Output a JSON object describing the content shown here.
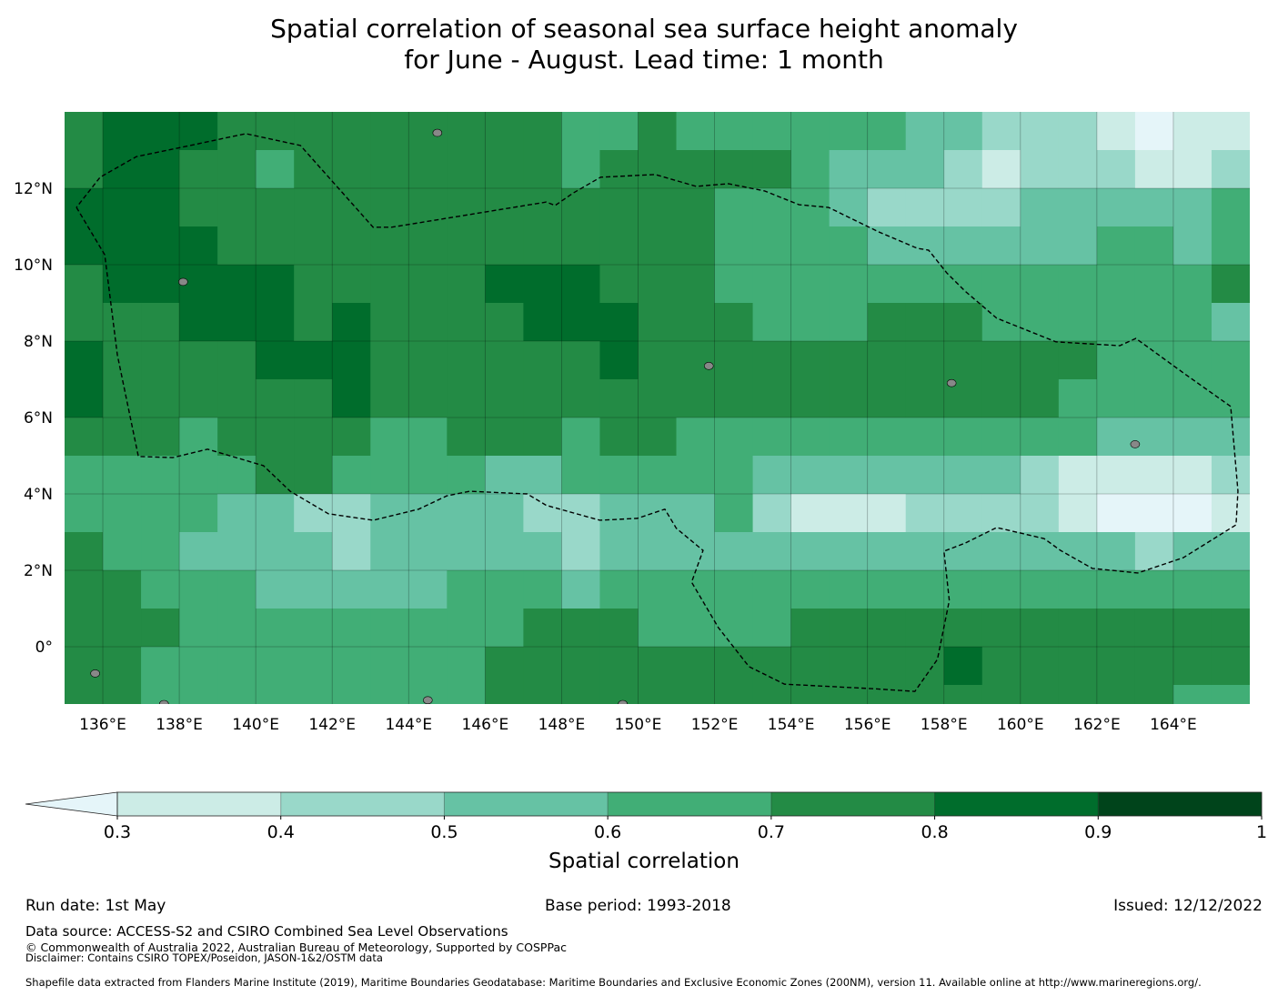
{
  "title_line1": "Spatial correlation of seasonal sea surface height anomaly",
  "title_line2": "for June - August. Lead time: 1 month",
  "chart_data": {
    "type": "heatmap",
    "projection": "PlateCarree",
    "lon_range": [
      135,
      166
    ],
    "lat_range": [
      -1.5,
      14
    ],
    "grid_lons": [
      136,
      138,
      140,
      142,
      144,
      146,
      148,
      150,
      152,
      154,
      156,
      158,
      160,
      162,
      164
    ],
    "grid_lats": [
      0,
      2,
      4,
      6,
      8,
      10,
      12
    ],
    "x_tick_labels": [
      "136°E",
      "138°E",
      "140°E",
      "142°E",
      "144°E",
      "146°E",
      "148°E",
      "150°E",
      "152°E",
      "154°E",
      "156°E",
      "158°E",
      "160°E",
      "162°E",
      "164°E"
    ],
    "y_tick_labels": [
      "0°",
      "2°N",
      "4°N",
      "6°N",
      "8°N",
      "10°N",
      "12°N"
    ],
    "field_note_cell_deg": 1,
    "field_top_lat": 14,
    "field_left_lon": 135,
    "field_class_index": [
      [
        5,
        6,
        6,
        6,
        5,
        5,
        5,
        5,
        5,
        5,
        5,
        5,
        5,
        4,
        4,
        5,
        4,
        4,
        4,
        4,
        4,
        4,
        3,
        3,
        2,
        2,
        2,
        1,
        0,
        1,
        1
      ],
      [
        5,
        6,
        6,
        5,
        5,
        4,
        5,
        5,
        5,
        5,
        5,
        5,
        5,
        4,
        5,
        5,
        5,
        5,
        5,
        4,
        3,
        3,
        3,
        2,
        1,
        2,
        2,
        2,
        1,
        1,
        2
      ],
      [
        6,
        6,
        6,
        5,
        5,
        5,
        5,
        5,
        5,
        5,
        5,
        5,
        5,
        5,
        5,
        5,
        5,
        4,
        4,
        4,
        3,
        2,
        2,
        2,
        2,
        3,
        3,
        3,
        3,
        3,
        4
      ],
      [
        6,
        6,
        6,
        6,
        5,
        5,
        5,
        5,
        5,
        5,
        5,
        5,
        5,
        5,
        5,
        5,
        5,
        4,
        4,
        4,
        4,
        3,
        3,
        3,
        3,
        3,
        3,
        4,
        4,
        3,
        4
      ],
      [
        5,
        6,
        6,
        6,
        6,
        6,
        5,
        5,
        5,
        5,
        5,
        6,
        6,
        6,
        5,
        5,
        5,
        4,
        4,
        4,
        4,
        4,
        4,
        4,
        4,
        4,
        4,
        4,
        4,
        4,
        5
      ],
      [
        5,
        5,
        5,
        6,
        6,
        6,
        5,
        6,
        5,
        5,
        5,
        5,
        6,
        6,
        6,
        5,
        5,
        5,
        4,
        4,
        4,
        5,
        5,
        5,
        4,
        4,
        4,
        4,
        4,
        4,
        3
      ],
      [
        6,
        5,
        5,
        5,
        5,
        6,
        6,
        6,
        5,
        5,
        5,
        5,
        5,
        5,
        6,
        5,
        5,
        5,
        5,
        5,
        5,
        5,
        5,
        5,
        5,
        5,
        5,
        4,
        4,
        4,
        4
      ],
      [
        6,
        5,
        5,
        5,
        5,
        5,
        5,
        6,
        5,
        5,
        5,
        5,
        5,
        5,
        5,
        5,
        5,
        5,
        5,
        5,
        5,
        5,
        5,
        5,
        5,
        5,
        4,
        4,
        4,
        4,
        4
      ],
      [
        5,
        5,
        5,
        4,
        5,
        5,
        5,
        5,
        4,
        4,
        5,
        5,
        5,
        4,
        5,
        5,
        4,
        4,
        4,
        4,
        4,
        4,
        4,
        4,
        4,
        4,
        4,
        3,
        3,
        3,
        3
      ],
      [
        4,
        4,
        4,
        4,
        4,
        5,
        5,
        4,
        4,
        4,
        4,
        3,
        3,
        4,
        4,
        4,
        4,
        4,
        3,
        3,
        3,
        3,
        3,
        3,
        3,
        2,
        1,
        1,
        1,
        1,
        2
      ],
      [
        4,
        4,
        4,
        4,
        3,
        3,
        2,
        2,
        3,
        3,
        3,
        3,
        2,
        2,
        3,
        3,
        3,
        4,
        2,
        1,
        1,
        1,
        2,
        2,
        2,
        2,
        1,
        0,
        0,
        0,
        1
      ],
      [
        5,
        4,
        4,
        3,
        3,
        3,
        3,
        2,
        3,
        3,
        3,
        3,
        3,
        2,
        3,
        3,
        3,
        3,
        3,
        3,
        3,
        3,
        3,
        3,
        3,
        3,
        3,
        3,
        2,
        3,
        3
      ],
      [
        5,
        5,
        4,
        4,
        4,
        3,
        3,
        3,
        3,
        3,
        4,
        4,
        4,
        3,
        4,
        4,
        4,
        4,
        4,
        4,
        4,
        4,
        4,
        4,
        4,
        4,
        4,
        4,
        4,
        4,
        4
      ],
      [
        5,
        5,
        5,
        4,
        4,
        4,
        4,
        4,
        4,
        4,
        4,
        4,
        5,
        5,
        5,
        4,
        4,
        4,
        4,
        5,
        5,
        5,
        5,
        5,
        5,
        5,
        5,
        5,
        5,
        5,
        5
      ],
      [
        5,
        5,
        4,
        4,
        4,
        4,
        4,
        4,
        4,
        4,
        4,
        5,
        5,
        5,
        5,
        5,
        5,
        5,
        5,
        5,
        5,
        5,
        5,
        6,
        5,
        5,
        5,
        5,
        5,
        5,
        5
      ],
      [
        5,
        5,
        4,
        4,
        4,
        4,
        4,
        4,
        4,
        4,
        4,
        5,
        5,
        5,
        5,
        5,
        5,
        5,
        5,
        5,
        5,
        5,
        5,
        5,
        5,
        5,
        5,
        5,
        5,
        4,
        4
      ]
    ],
    "eez_boundary_lonlat": [
      [
        135.31,
        11.5
      ],
      [
        136.05,
        10.26
      ],
      [
        136.38,
        7.64
      ],
      [
        136.93,
        4.98
      ],
      [
        137.83,
        4.95
      ],
      [
        138.74,
        5.17
      ],
      [
        140.2,
        4.74
      ],
      [
        140.9,
        4.07
      ],
      [
        141.9,
        3.48
      ],
      [
        143.07,
        3.31
      ],
      [
        144.26,
        3.6
      ],
      [
        145.0,
        3.95
      ],
      [
        145.6,
        4.07
      ],
      [
        147.1,
        4.0
      ],
      [
        147.6,
        3.7
      ],
      [
        149.0,
        3.31
      ],
      [
        149.98,
        3.36
      ],
      [
        150.7,
        3.6
      ],
      [
        151.0,
        3.1
      ],
      [
        151.7,
        2.52
      ],
      [
        151.4,
        1.69
      ],
      [
        152.1,
        0.5
      ],
      [
        152.9,
        -0.52
      ],
      [
        153.83,
        -0.98
      ],
      [
        156.17,
        -1.1
      ],
      [
        157.24,
        -1.17
      ],
      [
        157.83,
        -0.33
      ],
      [
        158.14,
        1.21
      ],
      [
        158.0,
        2.5
      ],
      [
        158.55,
        2.71
      ],
      [
        159.38,
        3.12
      ],
      [
        160.62,
        2.83
      ],
      [
        161.05,
        2.52
      ],
      [
        161.88,
        2.05
      ],
      [
        163.07,
        1.93
      ],
      [
        164.26,
        2.33
      ],
      [
        165.64,
        3.19
      ],
      [
        165.69,
        4.07
      ],
      [
        165.5,
        6.29
      ],
      [
        164.26,
        7.17
      ],
      [
        163.02,
        8.07
      ],
      [
        162.6,
        7.88
      ],
      [
        160.93,
        7.98
      ],
      [
        159.38,
        8.6
      ],
      [
        158.55,
        9.31
      ],
      [
        158.07,
        9.79
      ],
      [
        157.6,
        10.38
      ],
      [
        157.3,
        10.43
      ],
      [
        156.29,
        10.86
      ],
      [
        154.98,
        11.5
      ],
      [
        154.21,
        11.57
      ],
      [
        153.31,
        11.93
      ],
      [
        152.36,
        12.12
      ],
      [
        151.52,
        12.05
      ],
      [
        150.45,
        12.36
      ],
      [
        149.02,
        12.29
      ],
      [
        148.31,
        11.88
      ],
      [
        147.83,
        11.55
      ],
      [
        147.6,
        11.64
      ],
      [
        143.55,
        10.98
      ],
      [
        143.07,
        10.98
      ],
      [
        141.17,
        13.12
      ],
      [
        139.74,
        13.43
      ],
      [
        137.95,
        13.05
      ],
      [
        136.88,
        12.83
      ],
      [
        135.93,
        12.29
      ],
      [
        135.31,
        11.5
      ]
    ],
    "islands_lonlat": [
      [
        144.75,
        13.45
      ],
      [
        134.55,
        7.4
      ],
      [
        138.1,
        9.55
      ],
      [
        151.85,
        7.35
      ],
      [
        158.2,
        6.9
      ],
      [
        163.0,
        5.3
      ],
      [
        135.8,
        -0.7
      ],
      [
        137.6,
        -1.5
      ],
      [
        149.6,
        -1.5
      ],
      [
        144.5,
        -1.4
      ]
    ],
    "colorbar": {
      "label": "Spatial correlation",
      "boundaries": [
        0.3,
        0.4,
        0.5,
        0.6,
        0.7,
        0.8,
        0.9,
        1
      ],
      "tick_labels": [
        "0.3",
        "0.4",
        "0.5",
        "0.6",
        "0.7",
        "0.8",
        "0.9",
        "1"
      ],
      "extend": "min",
      "under_color": "#e5f5f9",
      "colors": [
        "#ccece6",
        "#99d8c9",
        "#66c2a4",
        "#41ae76",
        "#238b45",
        "#006d2c",
        "#00441b"
      ]
    }
  },
  "footer": {
    "run_date": "Run date: 1st May",
    "base_period": "Base period: 1993-2018",
    "issued": "Issued: 12/12/2022",
    "data_source": "Data source: ACCESS-S2 and CSIRO Combined Sea Level Observations",
    "copyright": "© Commonwealth of Australia 2022, Australian Bureau of Meteorology, Supported by COSPPac",
    "disclaimer": "Disclaimer: Contains CSIRO TOPEX/Poseidon, JASON-1&2/OSTM data",
    "shapefile": "Shapefile data extracted from Flanders Marine Institute (2019), Maritime Boundaries Geodatabase: Maritime Boundaries and Exclusive Economic Zones (200NM), version 11. Available online at http://www.marineregions.org/."
  }
}
